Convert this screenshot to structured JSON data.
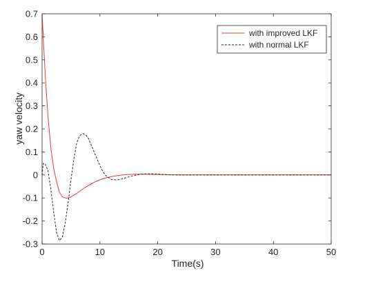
{
  "chart_data": {
    "type": "line",
    "title": "",
    "xlabel": "Time(s)",
    "ylabel": "yaw velocity",
    "xlim": [
      0,
      50
    ],
    "ylim": [
      -0.3,
      0.7
    ],
    "x_ticks": [
      0,
      10,
      20,
      30,
      40,
      50
    ],
    "x_tick_labels": [
      "0",
      "10",
      "20",
      "30",
      "40",
      "50"
    ],
    "y_ticks": [
      -0.3,
      -0.2,
      -0.1,
      0,
      0.1,
      0.2,
      0.3,
      0.4,
      0.5,
      0.6,
      0.7
    ],
    "y_tick_labels": [
      "-0.3",
      "-0.2",
      "-0.1",
      "0",
      "0.1",
      "0.2",
      "0.3",
      "0.4",
      "0.5",
      "0.6",
      "0.7"
    ],
    "grid": false,
    "legend_position": "top-right",
    "series": [
      {
        "name": "with improved LKF",
        "color": "#e8382f",
        "line_style": "solid",
        "x": [
          0,
          0.3,
          0.6,
          1,
          1.5,
          2,
          2.5,
          3,
          3.5,
          4,
          4.5,
          5,
          6,
          7,
          8,
          9,
          10,
          11,
          12,
          13,
          14,
          15,
          16,
          17,
          18,
          19,
          20,
          22,
          25,
          30,
          35,
          40,
          45,
          50
        ],
        "y": [
          0.7,
          0.55,
          0.41,
          0.26,
          0.12,
          0.03,
          -0.03,
          -0.075,
          -0.095,
          -0.1,
          -0.1,
          -0.095,
          -0.08,
          -0.062,
          -0.046,
          -0.032,
          -0.021,
          -0.013,
          -0.007,
          -0.003,
          0,
          0.002,
          0.003,
          0.003,
          0.003,
          0.002,
          0.002,
          0.001,
          0,
          0,
          0,
          0,
          0,
          0
        ]
      },
      {
        "name": "with normal LKF",
        "color": "#262626",
        "line_style": "dashed",
        "x": [
          0,
          0.2,
          0.5,
          1,
          1.5,
          2,
          2.5,
          3,
          3.5,
          4,
          4.5,
          5,
          5.5,
          6,
          6.5,
          7,
          7.5,
          8,
          8.5,
          9,
          9.5,
          10,
          10.5,
          11,
          12,
          13,
          14,
          15,
          16,
          17,
          18,
          19,
          20,
          21,
          22,
          23,
          25,
          30,
          35,
          40,
          45,
          50
        ],
        "y": [
          0,
          0.05,
          0.05,
          0.02,
          -0.06,
          -0.16,
          -0.25,
          -0.285,
          -0.27,
          -0.21,
          -0.12,
          -0.02,
          0.07,
          0.14,
          0.17,
          0.18,
          0.175,
          0.16,
          0.13,
          0.1,
          0.07,
          0.04,
          0.015,
          -0.002,
          -0.02,
          -0.022,
          -0.016,
          -0.008,
          -0.002,
          0.003,
          0.005,
          0.005,
          0.004,
          0.002,
          0.001,
          0,
          0,
          0,
          0,
          0,
          0,
          0
        ]
      }
    ]
  }
}
